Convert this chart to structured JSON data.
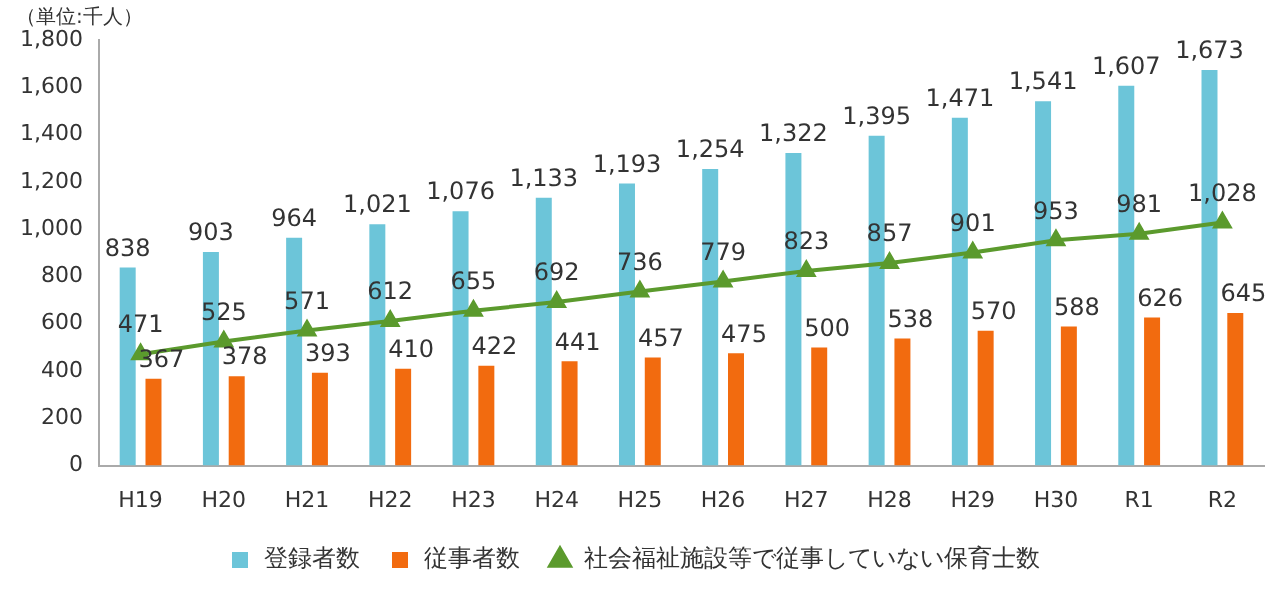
{
  "chart_data": {
    "type": "bar",
    "annotations": [
      "（単位:千人）"
    ],
    "categories": [
      "H19",
      "H20",
      "H21",
      "H22",
      "H23",
      "H24",
      "H25",
      "H26",
      "H27",
      "H28",
      "H29",
      "H30",
      "R1",
      "R2"
    ],
    "series": [
      {
        "name": "登録者数",
        "color": "#6cc5d9",
        "values": [
          838,
          903,
          964,
          1021,
          1076,
          1133,
          1193,
          1254,
          1322,
          1395,
          1471,
          1541,
          1607,
          1673
        ],
        "value_labels": [
          "838",
          "903",
          "964",
          "1,021",
          "1,076",
          "1,133",
          "1,193",
          "1,254",
          "1,322",
          "1,395",
          "1,471",
          "1,541",
          "1,607",
          "1,673"
        ]
      },
      {
        "name": "従事者数",
        "color": "#f26b0f",
        "values": [
          367,
          378,
          393,
          410,
          422,
          441,
          457,
          475,
          500,
          538,
          570,
          588,
          626,
          645
        ],
        "value_labels": [
          "367",
          "378",
          "393",
          "410",
          "422",
          "441",
          "457",
          "475",
          "500",
          "538",
          "570",
          "588",
          "626",
          "645"
        ]
      },
      {
        "name": "社会福祉施設等で従事していない保育士数",
        "type": "line",
        "color": "#5b9a2d",
        "marker": "triangle",
        "values": [
          471,
          525,
          571,
          612,
          655,
          692,
          736,
          779,
          823,
          857,
          901,
          953,
          981,
          1028
        ],
        "value_labels": [
          "471",
          "525",
          "571",
          "612",
          "655",
          "692",
          "736",
          "779",
          "823",
          "857",
          "901",
          "953",
          "981",
          "1,028"
        ]
      }
    ],
    "ylim": [
      0,
      1800
    ],
    "yticks": [
      0,
      200,
      400,
      600,
      800,
      {
        "value": 1000,
        "label": "1,000"
      },
      {
        "value": 1200,
        "label": "1,200"
      },
      {
        "value": 1400,
        "label": "1,400"
      },
      {
        "value": 1600,
        "label": "1,600"
      },
      {
        "value": 1800,
        "label": "1,800"
      }
    ],
    "legend": "bottom"
  }
}
